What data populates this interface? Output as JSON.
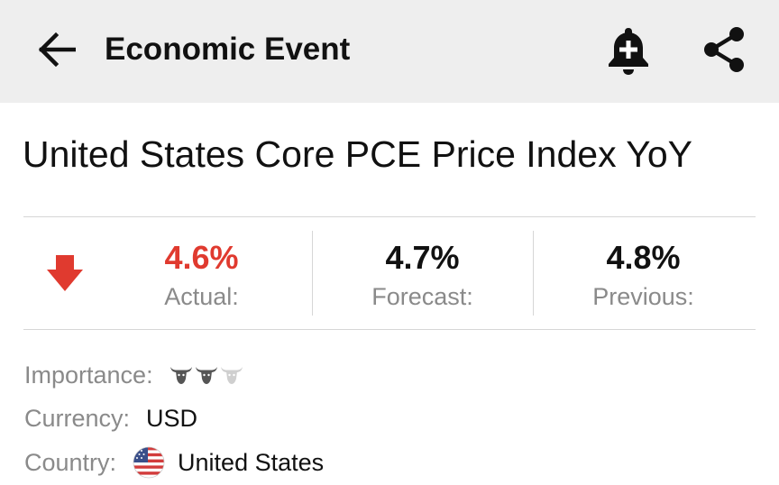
{
  "appbar": {
    "title": "Economic Event",
    "icons": {
      "back": "arrow-left-icon",
      "alert": "bell-plus-icon",
      "share": "share-icon"
    }
  },
  "event": {
    "title": "United States Core PCE Price Index YoY",
    "direction": "down",
    "direction_color": "#e03a2f"
  },
  "stats": {
    "actual": {
      "value": "4.6%",
      "label": "Actual:"
    },
    "forecast": {
      "value": "4.7%",
      "label": "Forecast:"
    },
    "previous": {
      "value": "4.8%",
      "label": "Previous:"
    }
  },
  "details": {
    "importance": {
      "label": "Importance:",
      "level": 2,
      "max": 3
    },
    "currency": {
      "label": "Currency:",
      "value": "USD"
    },
    "country": {
      "label": "Country:",
      "value": "United States",
      "flag": "us-flag-icon"
    }
  }
}
